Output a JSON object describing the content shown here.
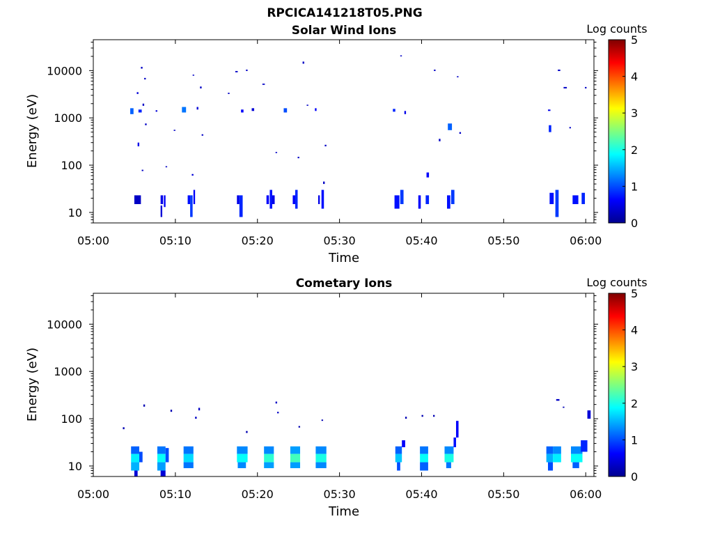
{
  "figure_title": "RPCICA141218T05.PNG",
  "colormap": [
    "#00008f",
    "#0000ff",
    "#007fff",
    "#00ffff",
    "#7fff7f",
    "#ffff00",
    "#ff7f00",
    "#ff0000",
    "#7f0000"
  ],
  "chart_data": [
    {
      "type": "heatmap",
      "title": "Solar Wind Ions",
      "xlabel": "Time",
      "ylabel": "Energy (eV)",
      "x_unit": "minutes after 05:00",
      "xlim": [
        0,
        61
      ],
      "ylim": [
        6,
        45000
      ],
      "yscale": "log",
      "xticks": [
        0,
        10,
        20,
        30,
        40,
        50,
        60
      ],
      "xtick_labels": [
        "05:00",
        "05:10",
        "05:20",
        "05:30",
        "05:40",
        "05:50",
        "06:00"
      ],
      "yticks": [
        10,
        100,
        1000,
        10000
      ],
      "ytick_labels": [
        "10",
        "100",
        "1000",
        "10000"
      ],
      "colorbar": {
        "label": "Log counts",
        "min": 0,
        "max": 5,
        "ticks": [
          0,
          1,
          2,
          3,
          4,
          5
        ]
      },
      "cells_note": "[t_start_min, t_end_min, E_low_eV, E_high_eV, log_counts]",
      "cells": [
        [
          5.0,
          5.8,
          15,
          23,
          0.3
        ],
        [
          4.5,
          4.9,
          1200,
          1600,
          1.1
        ],
        [
          5.5,
          5.9,
          1300,
          1500,
          0.8
        ],
        [
          5.4,
          5.6,
          250,
          300,
          0.5
        ],
        [
          5.3,
          5.5,
          3200,
          3500,
          0.4
        ],
        [
          5.8,
          6.0,
          11000,
          12000,
          0.3
        ],
        [
          6.2,
          6.4,
          6500,
          7000,
          0.3
        ],
        [
          6.0,
          6.2,
          1800,
          2000,
          0.3
        ],
        [
          6.3,
          6.5,
          700,
          760,
          0.3
        ],
        [
          5.9,
          6.1,
          75,
          80,
          0.3
        ],
        [
          7.6,
          7.8,
          1350,
          1450,
          0.4
        ],
        [
          8.2,
          8.5,
          15,
          23,
          0.5
        ],
        [
          8.2,
          8.4,
          8,
          14,
          0.4
        ],
        [
          8.6,
          8.8,
          13,
          23,
          0.6
        ],
        [
          8.8,
          9.0,
          90,
          95,
          0.3
        ],
        [
          9.8,
          10.0,
          530,
          560,
          0.3
        ],
        [
          10.8,
          11.3,
          1300,
          1700,
          1.2
        ],
        [
          11.5,
          11.8,
          15,
          23,
          0.7
        ],
        [
          11.8,
          12.1,
          8,
          23,
          0.9
        ],
        [
          12.2,
          12.4,
          15,
          30,
          0.6
        ],
        [
          12.0,
          12.2,
          60,
          65,
          0.4
        ],
        [
          12.1,
          12.3,
          7800,
          8200,
          0.3
        ],
        [
          12.6,
          12.8,
          1500,
          1700,
          0.4
        ],
        [
          13.0,
          13.2,
          4200,
          4600,
          0.3
        ],
        [
          13.2,
          13.4,
          420,
          450,
          0.3
        ],
        [
          16.4,
          16.6,
          3200,
          3400,
          0.3
        ],
        [
          17.3,
          17.6,
          9200,
          9800,
          0.3
        ],
        [
          17.5,
          17.8,
          15,
          23,
          0.5
        ],
        [
          17.8,
          18.2,
          8,
          23,
          0.8
        ],
        [
          18.0,
          18.3,
          1300,
          1500,
          0.6
        ],
        [
          18.6,
          18.8,
          9800,
          10500,
          0.3
        ],
        [
          19.3,
          19.6,
          1400,
          1600,
          0.4
        ],
        [
          20.6,
          20.9,
          5000,
          5300,
          0.3
        ],
        [
          21.1,
          21.4,
          15,
          23,
          0.6
        ],
        [
          21.5,
          21.8,
          12,
          30,
          0.7
        ],
        [
          21.8,
          22.1,
          15,
          23,
          0.5
        ],
        [
          22.2,
          22.4,
          180,
          190,
          0.3
        ],
        [
          23.2,
          23.6,
          1300,
          1600,
          1.0
        ],
        [
          24.3,
          24.6,
          15,
          23,
          0.6
        ],
        [
          24.6,
          24.9,
          12,
          30,
          0.8
        ],
        [
          24.9,
          25.1,
          140,
          150,
          0.3
        ],
        [
          25.5,
          25.7,
          14000,
          15500,
          0.3
        ],
        [
          26.0,
          26.2,
          1800,
          1900,
          0.3
        ],
        [
          27.0,
          27.2,
          1400,
          1600,
          0.6
        ],
        [
          27.4,
          27.6,
          15,
          23,
          0.5
        ],
        [
          27.8,
          28.1,
          12,
          30,
          0.7
        ],
        [
          28.0,
          28.2,
          40,
          45,
          0.3
        ],
        [
          28.2,
          28.4,
          250,
          270,
          0.3
        ],
        [
          36.5,
          36.8,
          1350,
          1550,
          0.8
        ],
        [
          37.4,
          37.6,
          20000,
          21000,
          0.3
        ],
        [
          36.7,
          37.3,
          12,
          23,
          0.7
        ],
        [
          37.4,
          37.8,
          15,
          30,
          0.9
        ],
        [
          37.9,
          38.1,
          1200,
          1400,
          0.5
        ],
        [
          39.6,
          39.9,
          12,
          23,
          0.6
        ],
        [
          40.5,
          40.9,
          15,
          23,
          0.8
        ],
        [
          40.6,
          40.9,
          55,
          70,
          0.6
        ],
        [
          41.5,
          41.7,
          9800,
          10500,
          0.3
        ],
        [
          42.1,
          42.3,
          320,
          360,
          0.3
        ],
        [
          43.1,
          43.5,
          12,
          23,
          0.7
        ],
        [
          43.6,
          44.0,
          15,
          30,
          0.9
        ],
        [
          43.2,
          43.7,
          550,
          760,
          1.1
        ],
        [
          44.3,
          44.5,
          7200,
          7600,
          0.3
        ],
        [
          44.6,
          44.8,
          460,
          500,
          0.3
        ],
        [
          55.4,
          55.7,
          1400,
          1500,
          0.5
        ],
        [
          55.5,
          55.8,
          500,
          700,
          0.8
        ],
        [
          55.6,
          56.1,
          15,
          26,
          0.7
        ],
        [
          56.3,
          56.7,
          8,
          30,
          0.9
        ],
        [
          56.6,
          56.9,
          9800,
          10500,
          0.3
        ],
        [
          57.3,
          57.7,
          4200,
          4500,
          0.3
        ],
        [
          58.0,
          58.2,
          600,
          640,
          0.3
        ],
        [
          58.4,
          59.1,
          15,
          23,
          0.7
        ],
        [
          59.5,
          59.9,
          15,
          26,
          0.8
        ],
        [
          59.9,
          60.1,
          4200,
          4500,
          0.3
        ]
      ]
    },
    {
      "type": "heatmap",
      "title": "Cometary Ions",
      "xlabel": "Time",
      "ylabel": "Energy (eV)",
      "x_unit": "minutes after 05:00",
      "xlim": [
        0,
        61
      ],
      "ylim": [
        6,
        45000
      ],
      "yscale": "log",
      "xticks": [
        0,
        10,
        20,
        30,
        40,
        50,
        60
      ],
      "xtick_labels": [
        "05:00",
        "05:10",
        "05:20",
        "05:30",
        "05:40",
        "05:50",
        "06:00"
      ],
      "yticks": [
        10,
        100,
        1000,
        10000
      ],
      "ytick_labels": [
        "10",
        "100",
        "1000",
        "10000"
      ],
      "colorbar": {
        "label": "Log counts",
        "min": 0,
        "max": 5,
        "ticks": [
          0,
          1,
          2,
          3,
          4,
          5
        ]
      },
      "cells_note": "[t_start_min, t_end_min, E_low_eV, E_high_eV, log_counts]",
      "cells": [
        [
          3.6,
          3.8,
          60,
          66,
          0.2
        ],
        [
          6.1,
          6.3,
          180,
          200,
          0.2
        ],
        [
          4.6,
          5.6,
          18,
          26,
          1.1
        ],
        [
          4.6,
          5.6,
          12,
          18,
          1.8
        ],
        [
          4.6,
          5.6,
          8,
          12,
          1.5
        ],
        [
          5.0,
          5.4,
          6,
          8,
          0.4
        ],
        [
          5.6,
          6.0,
          12,
          20,
          1.0
        ],
        [
          7.8,
          8.8,
          18,
          26,
          1.2
        ],
        [
          7.8,
          8.8,
          12,
          18,
          1.9
        ],
        [
          7.8,
          8.8,
          8,
          12,
          1.4
        ],
        [
          8.2,
          8.8,
          6,
          8,
          0.4
        ],
        [
          8.8,
          9.2,
          12,
          24,
          1.0
        ],
        [
          9.4,
          9.6,
          140,
          155,
          0.2
        ],
        [
          11.0,
          12.2,
          18,
          26,
          1.2
        ],
        [
          11.0,
          12.2,
          12,
          18,
          1.7
        ],
        [
          11.0,
          12.2,
          9,
          12,
          1.2
        ],
        [
          12.4,
          12.6,
          100,
          110,
          0.3
        ],
        [
          12.8,
          13.0,
          150,
          170,
          0.3
        ],
        [
          17.5,
          18.8,
          18,
          26,
          1.3
        ],
        [
          17.5,
          18.8,
          12,
          18,
          1.9
        ],
        [
          17.6,
          18.6,
          9,
          12,
          1.3
        ],
        [
          18.6,
          18.8,
          50,
          55,
          0.2
        ],
        [
          20.8,
          22.0,
          18,
          26,
          1.3
        ],
        [
          20.8,
          22.0,
          12,
          18,
          2.1
        ],
        [
          20.8,
          22.0,
          9,
          12,
          1.4
        ],
        [
          22.2,
          22.4,
          210,
          230,
          0.3
        ],
        [
          22.4,
          22.6,
          130,
          140,
          0.3
        ],
        [
          24.0,
          25.2,
          18,
          26,
          1.4
        ],
        [
          24.0,
          25.2,
          12,
          18,
          2.2
        ],
        [
          24.0,
          25.2,
          9,
          12,
          1.4
        ],
        [
          25.0,
          25.2,
          65,
          70,
          0.2
        ],
        [
          27.1,
          28.4,
          18,
          26,
          1.3
        ],
        [
          27.1,
          28.4,
          12,
          18,
          2.0
        ],
        [
          27.1,
          28.4,
          9,
          12,
          1.3
        ],
        [
          27.8,
          28.0,
          90,
          96,
          0.2
        ],
        [
          36.8,
          37.6,
          18,
          26,
          1.1
        ],
        [
          36.8,
          37.6,
          12,
          18,
          1.6
        ],
        [
          37.0,
          37.4,
          8,
          12,
          1.0
        ],
        [
          37.6,
          38.0,
          25,
          35,
          0.6
        ],
        [
          38.0,
          38.2,
          100,
          110,
          0.2
        ],
        [
          39.8,
          40.8,
          18,
          26,
          1.2
        ],
        [
          39.8,
          40.8,
          12,
          18,
          1.9
        ],
        [
          39.8,
          40.8,
          8,
          12,
          1.1
        ],
        [
          40.0,
          40.2,
          110,
          120,
          0.2
        ],
        [
          41.4,
          41.6,
          110,
          120,
          0.2
        ],
        [
          42.8,
          43.9,
          18,
          26,
          1.3
        ],
        [
          42.8,
          43.9,
          12,
          18,
          2.0
        ],
        [
          43.0,
          43.6,
          9,
          12,
          1.2
        ],
        [
          43.9,
          44.2,
          25,
          40,
          0.7
        ],
        [
          44.2,
          44.5,
          40,
          90,
          0.6
        ],
        [
          55.2,
          56.0,
          18,
          26,
          1.1
        ],
        [
          55.2,
          56.0,
          12,
          18,
          1.5
        ],
        [
          55.4,
          56.0,
          8,
          12,
          1.0
        ],
        [
          56.0,
          57.0,
          18,
          26,
          1.3
        ],
        [
          56.0,
          57.0,
          12,
          18,
          1.8
        ],
        [
          56.4,
          56.8,
          240,
          260,
          0.3
        ],
        [
          57.2,
          57.4,
          170,
          180,
          0.2
        ],
        [
          58.2,
          59.6,
          18,
          26,
          1.3
        ],
        [
          58.2,
          59.6,
          12,
          18,
          1.9
        ],
        [
          58.4,
          59.2,
          9,
          12,
          1.1
        ],
        [
          59.4,
          60.2,
          20,
          35,
          0.8
        ],
        [
          60.2,
          60.6,
          100,
          150,
          0.4
        ]
      ]
    }
  ]
}
